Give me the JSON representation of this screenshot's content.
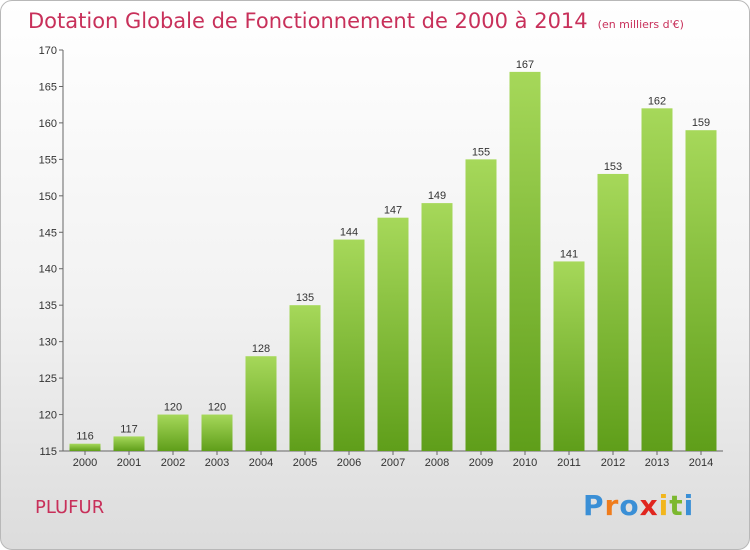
{
  "chart_data": {
    "type": "bar",
    "title": "Dotation Globale de Fonctionnement de 2000 à 2014",
    "unit_label": "(en milliers d'€)",
    "categories": [
      "2000",
      "2001",
      "2002",
      "2003",
      "2004",
      "2005",
      "2006",
      "2007",
      "2008",
      "2009",
      "2010",
      "2011",
      "2012",
      "2013",
      "2014"
    ],
    "values": [
      116,
      117,
      120,
      120,
      128,
      135,
      144,
      147,
      149,
      155,
      167,
      141,
      153,
      162,
      159
    ],
    "ylim": [
      115,
      170
    ],
    "yticks": [
      115,
      120,
      125,
      130,
      135,
      140,
      145,
      150,
      155,
      160,
      165,
      170
    ],
    "grid": false,
    "bar_color_top": "#a6d85a",
    "bar_color_bottom": "#5f9e1a"
  },
  "commune": "PLUFUR",
  "logo": {
    "p": "P",
    "r": "r",
    "o": "o",
    "x": "x",
    "i1": "i",
    "t": "t",
    "i2": "i"
  }
}
